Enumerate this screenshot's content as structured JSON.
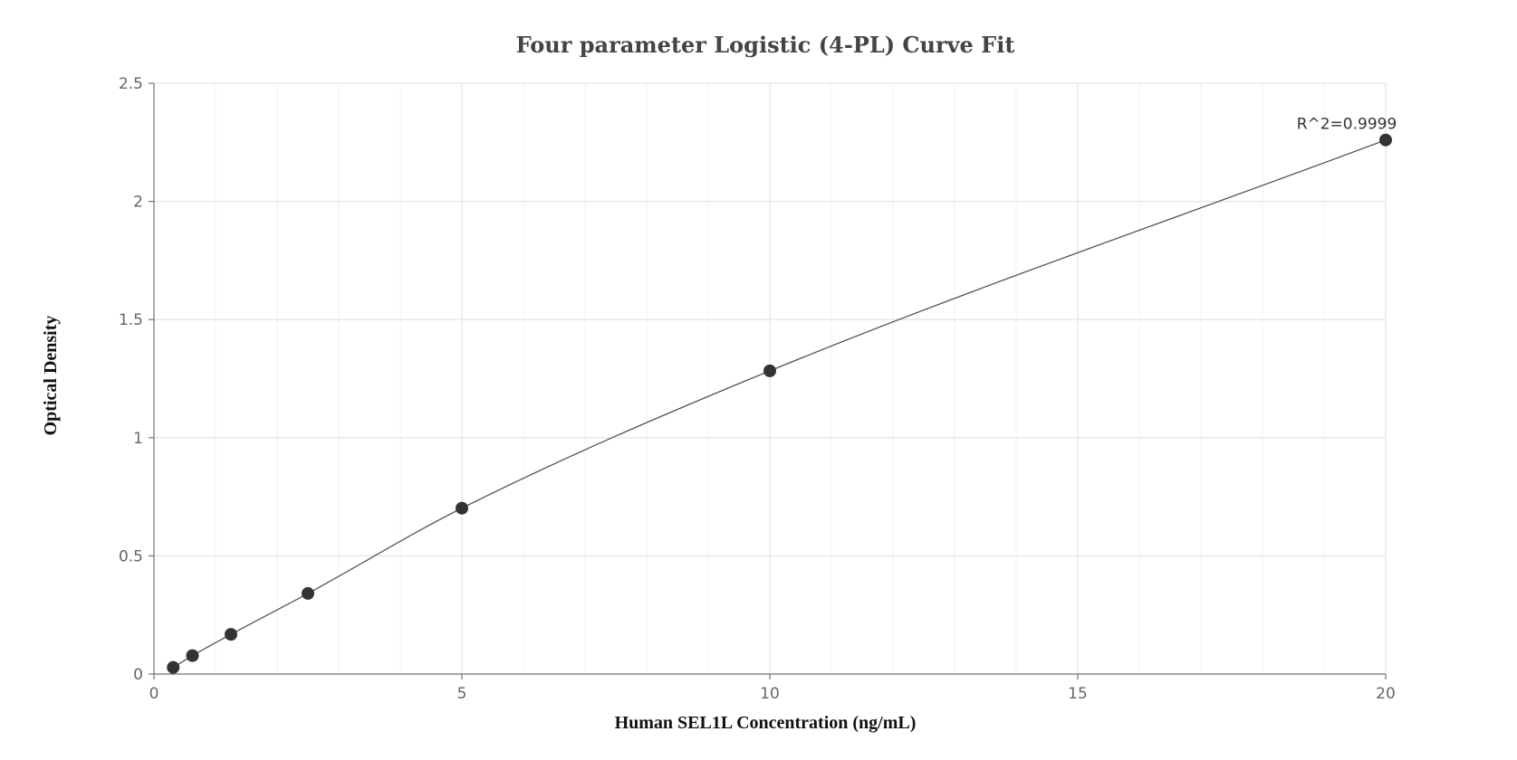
{
  "chart_data": {
    "type": "scatter",
    "title": "Four parameter Logistic (4-PL) Curve Fit",
    "xlabel": "Human SEL1L Concentration (ng/mL)",
    "ylabel": "Optical Density",
    "xlim": [
      0,
      20
    ],
    "ylim": [
      0,
      2.5
    ],
    "x_ticks": [
      0,
      5,
      10,
      15,
      20
    ],
    "y_ticks": [
      0,
      0.5,
      1,
      1.5,
      2,
      2.5
    ],
    "x_tick_labels": [
      "0",
      "5",
      "10",
      "15",
      "20"
    ],
    "y_tick_labels": [
      "0",
      "0.5",
      "1",
      "1.5",
      "2",
      "2.5"
    ],
    "grid": true,
    "series": [
      {
        "points": [
          {
            "x": 0.3125,
            "y": 0.028
          },
          {
            "x": 0.625,
            "y": 0.078
          },
          {
            "x": 1.25,
            "y": 0.168
          },
          {
            "x": 2.5,
            "y": 0.341
          },
          {
            "x": 5,
            "y": 0.702
          },
          {
            "x": 10,
            "y": 1.283
          },
          {
            "x": 20,
            "y": 2.26
          }
        ],
        "color": "#333333"
      }
    ],
    "fit_curve": {
      "type": "4PL",
      "color": "#555555"
    },
    "annotations": [
      {
        "text": "R^2=0.9999",
        "x": 20,
        "y": 2.26
      }
    ]
  }
}
